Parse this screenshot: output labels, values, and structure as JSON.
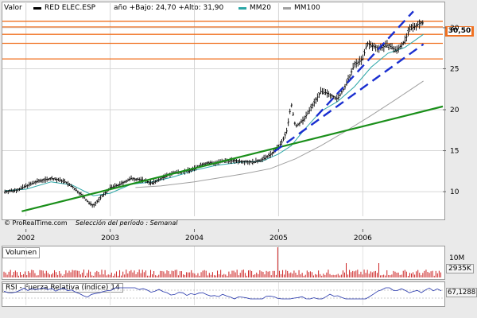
{
  "legend": {
    "valor": "Valor",
    "ticker": "RED ELEC.ESP",
    "range_text": "año +Bajo: 24,70 +Alto: 31,90",
    "mm20": "MM20",
    "mm100": "MM100"
  },
  "colors": {
    "candle": "#000000",
    "mm20": "#2aa6a6",
    "mm100": "#a0a0a0",
    "support": "#1a8f1a",
    "channel": "#1a2fd0",
    "resistance": "#f07020",
    "volume": "#cc2222",
    "rsi": "#2233aa"
  },
  "footer": {
    "copyright": "© ProRealTime.com",
    "period": "Selección del período : Semanal"
  },
  "volume_panel": {
    "title": "Volumen",
    "axis_label": "10M",
    "value": "2935K"
  },
  "rsi_panel": {
    "title": "RSI - Fuerza Relativa (índice) 14",
    "value": "67,1288"
  },
  "current_price": "30,50",
  "chart_data": {
    "type": "line",
    "title": "",
    "xlabel": "",
    "ylabel": "",
    "x_ticks": [
      "2002",
      "2003",
      "2004",
      "2005",
      "2006"
    ],
    "y_ticks": [
      10,
      15,
      20,
      25,
      30
    ],
    "ylim": [
      7,
      33
    ],
    "xlim": [
      2001.72,
      2006.95
    ],
    "series": [
      {
        "name": "RED ELEC.ESP",
        "x": [
          2001.75,
          2001.9,
          2002.0,
          2002.15,
          2002.3,
          2002.45,
          2002.55,
          2002.65,
          2002.75,
          2002.8,
          2002.9,
          2003.0,
          2003.1,
          2003.25,
          2003.4,
          2003.5,
          2003.6,
          2003.75,
          2003.9,
          2004.0,
          2004.1,
          2004.25,
          2004.4,
          2004.55,
          2004.7,
          2004.8,
          2004.9,
          2004.95,
          2005.0,
          2005.05,
          2005.1,
          2005.15,
          2005.2,
          2005.3,
          2005.4,
          2005.5,
          2005.6,
          2005.7,
          2005.8,
          2005.9,
          2006.0,
          2006.05,
          2006.1,
          2006.2,
          2006.3,
          2006.4,
          2006.5,
          2006.55,
          2006.6,
          2006.65,
          2006.7,
          2006.72
        ],
        "values": [
          10.0,
          10.2,
          10.7,
          11.3,
          11.6,
          11.3,
          10.6,
          9.7,
          8.6,
          8.3,
          9.4,
          10.5,
          10.8,
          11.6,
          11.4,
          11.0,
          11.6,
          12.3,
          12.5,
          12.8,
          13.4,
          13.5,
          13.8,
          13.7,
          13.6,
          13.9,
          14.5,
          14.9,
          15.5,
          16.2,
          17.5,
          20.8,
          17.9,
          18.8,
          20.5,
          22.2,
          21.9,
          21.3,
          23.0,
          25.5,
          26.2,
          28.1,
          27.8,
          27.5,
          27.9,
          27.2,
          28.4,
          29.7,
          30.1,
          30.4,
          30.7,
          30.5
        ]
      },
      {
        "name": "MM20",
        "x": [
          2001.75,
          2002.0,
          2002.3,
          2002.55,
          2002.8,
          2003.0,
          2003.25,
          2003.5,
          2003.75,
          2004.0,
          2004.25,
          2004.55,
          2004.8,
          2005.0,
          2005.15,
          2005.3,
          2005.5,
          2005.7,
          2005.9,
          2006.1,
          2006.3,
          2006.5,
          2006.72
        ],
        "values": [
          10.1,
          10.3,
          11.2,
          10.8,
          9.5,
          9.8,
          10.9,
          11.2,
          11.8,
          12.6,
          13.2,
          13.6,
          13.7,
          14.6,
          15.6,
          17.5,
          19.8,
          21.0,
          22.8,
          25.2,
          26.9,
          27.6,
          29.2
        ]
      },
      {
        "name": "MM100",
        "x": [
          2003.3,
          2003.6,
          2004.0,
          2004.3,
          2004.6,
          2004.9,
          2005.2,
          2005.5,
          2005.8,
          2006.1,
          2006.4,
          2006.72
        ],
        "values": [
          10.5,
          10.7,
          11.2,
          11.7,
          12.2,
          12.8,
          14.0,
          15.6,
          17.4,
          19.3,
          21.3,
          23.5
        ]
      }
    ],
    "trend_lines": [
      {
        "kind": "support",
        "points": [
          [
            2001.95,
            7.6
          ],
          [
            2006.95,
            20.4
          ]
        ]
      },
      {
        "kind": "channel-upper",
        "points": [
          [
            2005.45,
            19.2
          ],
          [
            2006.6,
            32.0
          ]
        ]
      },
      {
        "kind": "channel-lower",
        "points": [
          [
            2004.95,
            14.9
          ],
          [
            2006.72,
            28.0
          ]
        ]
      }
    ],
    "horizontal_lines": [
      26.2,
      28.1,
      29.2,
      30.1,
      30.8
    ]
  }
}
